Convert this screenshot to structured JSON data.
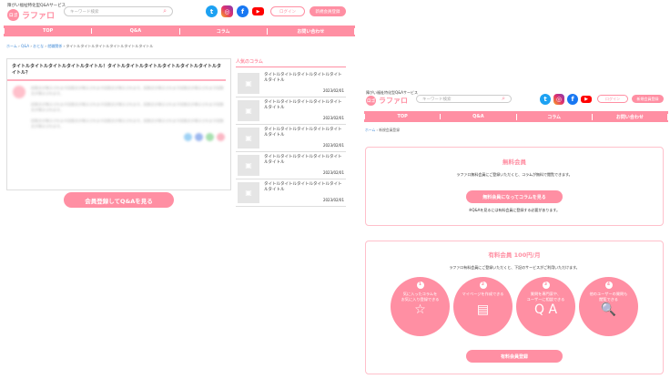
{
  "site": {
    "tagline": "障がい福祉特化型Q&Aサービス",
    "logo_mark": "ロゴ",
    "logo_text": "ラファロ",
    "search_placeholder": "キーワード検索",
    "login": "ログイン",
    "register": "新規会員登録",
    "social": [
      "twitter-icon",
      "instagram-icon",
      "facebook-icon",
      "youtube-icon"
    ]
  },
  "nav": [
    "TOP",
    "Q&A",
    "コラム",
    "お問い合わせ"
  ],
  "left": {
    "breadcrumb": [
      "ホーム",
      "Q&A",
      "おとな",
      "就職関係",
      "タイトルタイトルタイトルタイトルタイトルタイトル"
    ],
    "question_title": "タイトルタイトルタイトルタイトルタイトル！タイトルタイトルタイトルタイトルタイトルタイトルタイトル？",
    "blurred_text": "回答文が表示されます回答文が表示されます回答文が表示されます。回答文が表示されます回答文が表示されます回答文が表示されます。",
    "cta": "会員登録してQ&Aを見る",
    "sidebar_title": "人気のコラム",
    "columns": [
      {
        "title": "タイトルタイトルタイトルタイトルタイトルタイトル",
        "date": "2023/02/01"
      },
      {
        "title": "タイトルタイトルタイトルタイトルタイトルタイトル",
        "date": "2023/02/01"
      },
      {
        "title": "タイトルタイトルタイトルタイトルタイトルタイトル",
        "date": "2023/02/01"
      },
      {
        "title": "タイトルタイトルタイトルタイトルタイトルタイトル",
        "date": "2023/02/01"
      },
      {
        "title": "タイトルタイトルタイトルタイトルタイトルタイトル",
        "date": "2023/02/01"
      }
    ]
  },
  "right": {
    "breadcrumb": [
      "ホーム",
      "新規会員登録"
    ],
    "free": {
      "title": "無料会員",
      "desc": "ラファロ無料会員にご登録いただくと、コラムが無料で閲覧できます。",
      "button": "無料会員になってコラムを見る",
      "note": "※Q&Aを見るには有料会員に登録する必要があります。"
    },
    "paid": {
      "title": "有料会員 100円/月",
      "desc": "ラファロ有料会員にご登録いただくと、下記のサービスがご利用いただけます。",
      "button": "有料会員登録",
      "features": [
        {
          "num": "1",
          "text": "気に入ったコラムを\nお気に入り登録できる",
          "icon": "favorite-document-icon"
        },
        {
          "num": "2",
          "text": "マイページを作成できる",
          "icon": "clipboard-icon"
        },
        {
          "num": "3",
          "text": "質問を専門家や、\nユーザーに相談できる",
          "icon": "qa-bubble-icon"
        },
        {
          "num": "4",
          "text": "他のユーザーの質問も\n閲覧できる",
          "icon": "document-search-icon"
        }
      ]
    }
  },
  "colors": {
    "accent": "#ff8fa3",
    "border": "#ffc0cb"
  }
}
